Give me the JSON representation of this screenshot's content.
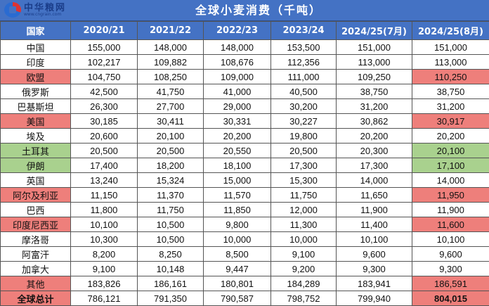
{
  "logo": {
    "name": "中华粮网",
    "url": "www.cngrain.com"
  },
  "title": "全球小麦消费（千吨）",
  "colors": {
    "header_blue": "#4472C4",
    "highlight_red": "#EE7F7B",
    "highlight_green": "#A9D18E"
  },
  "headers": [
    "国家",
    "2020/21",
    "2021/22",
    "2022/23",
    "2023/24",
    "2024/25(7月)",
    "2024/25(8月)"
  ],
  "rows": [
    {
      "country": "中国",
      "values": [
        "155,000",
        "148,000",
        "148,000",
        "153,500",
        "151,000",
        "151,000"
      ],
      "highlight": ""
    },
    {
      "country": "印度",
      "values": [
        "102,217",
        "109,882",
        "108,676",
        "112,356",
        "113,000",
        "113,000"
      ],
      "highlight": ""
    },
    {
      "country": "欧盟",
      "values": [
        "104,750",
        "108,250",
        "109,000",
        "111,000",
        "109,250",
        "110,250"
      ],
      "highlight": "red"
    },
    {
      "country": "俄罗斯",
      "values": [
        "42,500",
        "41,750",
        "41,000",
        "40,500",
        "38,750",
        "38,750"
      ],
      "highlight": ""
    },
    {
      "country": "巴基斯坦",
      "values": [
        "26,300",
        "27,700",
        "29,000",
        "30,200",
        "31,200",
        "31,200"
      ],
      "highlight": ""
    },
    {
      "country": "美国",
      "values": [
        "30,185",
        "30,411",
        "30,331",
        "30,227",
        "30,862",
        "30,917"
      ],
      "highlight": "red"
    },
    {
      "country": "埃及",
      "values": [
        "20,600",
        "20,100",
        "20,200",
        "19,800",
        "20,200",
        "20,200"
      ],
      "highlight": ""
    },
    {
      "country": "土耳其",
      "values": [
        "20,500",
        "20,500",
        "20,550",
        "20,500",
        "20,300",
        "20,100"
      ],
      "highlight": "green"
    },
    {
      "country": "伊朗",
      "values": [
        "17,400",
        "18,200",
        "18,100",
        "17,300",
        "17,300",
        "17,100"
      ],
      "highlight": "green"
    },
    {
      "country": "英国",
      "values": [
        "13,240",
        "15,324",
        "15,000",
        "15,300",
        "14,000",
        "14,000"
      ],
      "highlight": ""
    },
    {
      "country": "阿尔及利亚",
      "values": [
        "11,150",
        "11,370",
        "11,570",
        "11,750",
        "11,650",
        "11,950"
      ],
      "highlight": "red"
    },
    {
      "country": "巴西",
      "values": [
        "11,800",
        "11,750",
        "11,850",
        "12,000",
        "11,900",
        "11,900"
      ],
      "highlight": ""
    },
    {
      "country": "印度尼西亚",
      "values": [
        "10,100",
        "10,500",
        "9,800",
        "11,300",
        "11,400",
        "11,600"
      ],
      "highlight": "red"
    },
    {
      "country": "摩洛哥",
      "values": [
        "10,300",
        "10,500",
        "10,000",
        "10,000",
        "10,100",
        "10,100"
      ],
      "highlight": ""
    },
    {
      "country": "阿富汗",
      "values": [
        "8,200",
        "8,250",
        "8,500",
        "9,100",
        "9,600",
        "9,600"
      ],
      "highlight": ""
    },
    {
      "country": "加拿大",
      "values": [
        "9,100",
        "10,148",
        "9,447",
        "9,200",
        "9,300",
        "9,300"
      ],
      "highlight": ""
    },
    {
      "country": "其他",
      "values": [
        "183,826",
        "186,161",
        "180,801",
        "184,289",
        "183,941",
        "186,591"
      ],
      "highlight": "red"
    },
    {
      "country": "全球总计",
      "values": [
        "786,121",
        "791,350",
        "790,587",
        "798,752",
        "799,940",
        "804,015"
      ],
      "highlight": "red",
      "total": true
    }
  ]
}
